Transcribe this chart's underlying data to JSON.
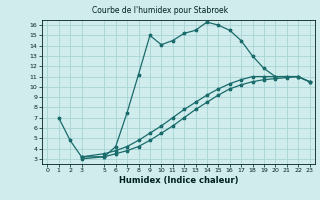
{
  "title": "Courbe de l'humidex pour Stabroek",
  "xlabel": "Humidex (Indice chaleur)",
  "ylabel": "",
  "bg_color": "#d0ecec",
  "grid_color": "#a8d4d4",
  "line_color": "#1a6b6b",
  "xlim": [
    -0.5,
    23.5
  ],
  "ylim": [
    2.5,
    16.5
  ],
  "xticks": [
    0,
    1,
    2,
    3,
    5,
    6,
    7,
    8,
    9,
    10,
    11,
    12,
    13,
    14,
    15,
    16,
    17,
    18,
    19,
    20,
    21,
    22,
    23
  ],
  "yticks": [
    3,
    4,
    5,
    6,
    7,
    8,
    9,
    10,
    11,
    12,
    13,
    14,
    15,
    16
  ],
  "curve1_x": [
    1,
    2,
    3,
    5,
    6,
    7,
    8,
    9,
    10,
    11,
    12,
    13,
    14,
    15,
    16,
    17,
    18,
    19,
    20,
    21,
    22,
    23
  ],
  "curve1_y": [
    7.0,
    4.8,
    3.2,
    3.2,
    4.2,
    7.5,
    11.2,
    15.0,
    14.1,
    14.5,
    15.2,
    15.5,
    16.3,
    16.0,
    15.5,
    14.5,
    13.0,
    11.8,
    11.0,
    11.0,
    11.0,
    10.5
  ],
  "curve2_x": [
    3,
    5,
    6,
    7,
    8,
    9,
    10,
    11,
    12,
    13,
    14,
    15,
    16,
    17,
    18,
    19,
    20,
    21,
    22,
    23
  ],
  "curve2_y": [
    3.2,
    3.5,
    3.8,
    4.2,
    4.8,
    5.5,
    6.2,
    7.0,
    7.8,
    8.5,
    9.2,
    9.8,
    10.3,
    10.7,
    11.0,
    11.0,
    11.0,
    11.0,
    11.0,
    10.5
  ],
  "curve3_x": [
    3,
    5,
    6,
    7,
    8,
    9,
    10,
    11,
    12,
    13,
    14,
    15,
    16,
    17,
    18,
    19,
    20,
    21,
    22,
    23
  ],
  "curve3_y": [
    3.0,
    3.2,
    3.5,
    3.8,
    4.2,
    4.8,
    5.5,
    6.2,
    7.0,
    7.8,
    8.5,
    9.2,
    9.8,
    10.2,
    10.5,
    10.7,
    10.8,
    10.9,
    11.0,
    10.5
  ],
  "title_fontsize": 5.5,
  "tick_fontsize": 4.5,
  "xlabel_fontsize": 6.0
}
